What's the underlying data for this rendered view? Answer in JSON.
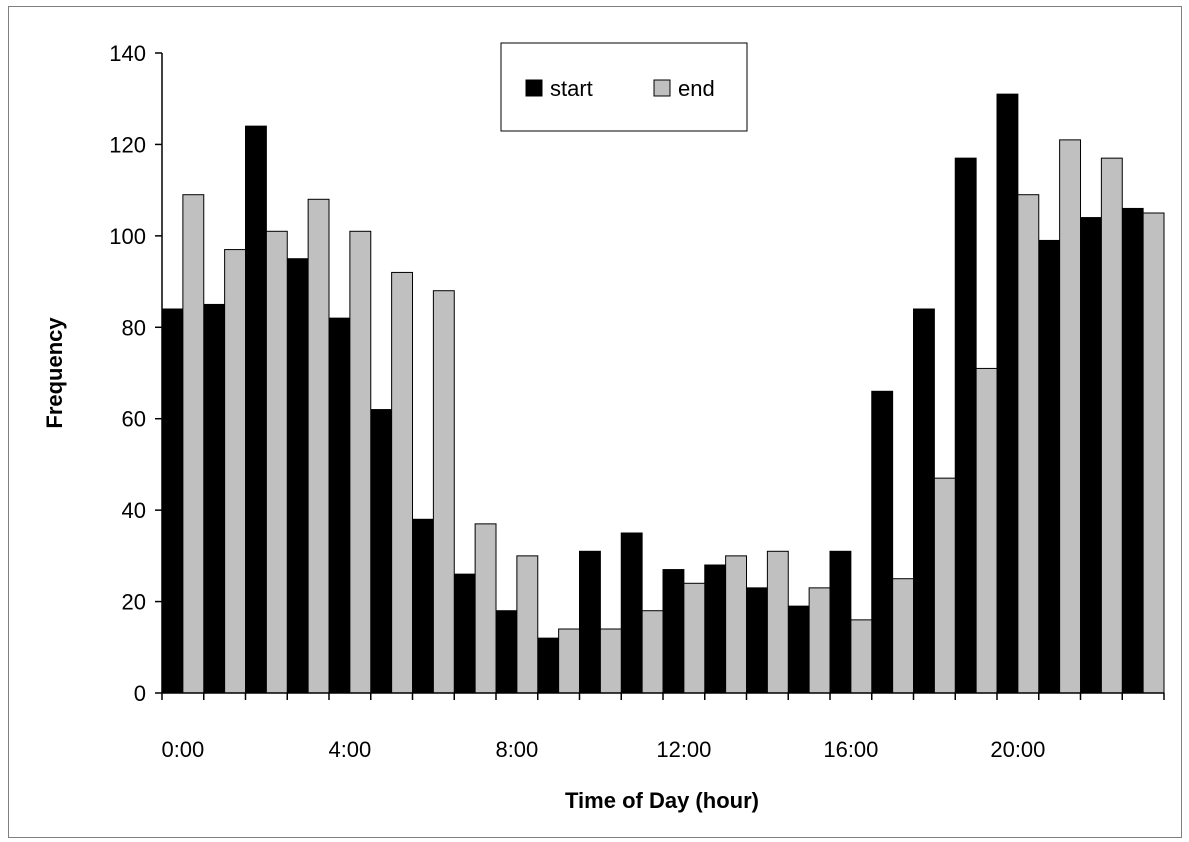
{
  "chart_data": {
    "type": "bar",
    "title": "",
    "xlabel": "Time of Day (hour)",
    "ylabel": "Frequency",
    "ylim": [
      0,
      140
    ],
    "yticks": [
      "0",
      "20",
      "40",
      "60",
      "80",
      "100",
      "120",
      "140"
    ],
    "categories": [
      "0",
      "1",
      "2",
      "3",
      "4",
      "5",
      "6",
      "7",
      "8",
      "9",
      "10",
      "11",
      "12",
      "13",
      "14",
      "15",
      "16",
      "17",
      "18",
      "19",
      "20",
      "21",
      "22",
      "23"
    ],
    "xtick_labels": [
      "0:00",
      "4:00",
      "8:00",
      "12:00",
      "16:00",
      "20:00"
    ],
    "legend_position": "top-center",
    "grid": false,
    "series": [
      {
        "name": "start",
        "color": "#000000",
        "values": [
          84,
          85,
          124,
          95,
          82,
          62,
          38,
          26,
          18,
          12,
          31,
          35,
          27,
          28,
          23,
          19,
          31,
          66,
          84,
          117,
          131,
          99,
          104,
          106
        ]
      },
      {
        "name": "end",
        "color": "#c0c0c0",
        "values": [
          109,
          97,
          101,
          108,
          101,
          92,
          88,
          37,
          30,
          14,
          14,
          18,
          24,
          30,
          31,
          23,
          16,
          25,
          47,
          71,
          109,
          121,
          117,
          105
        ]
      }
    ]
  }
}
